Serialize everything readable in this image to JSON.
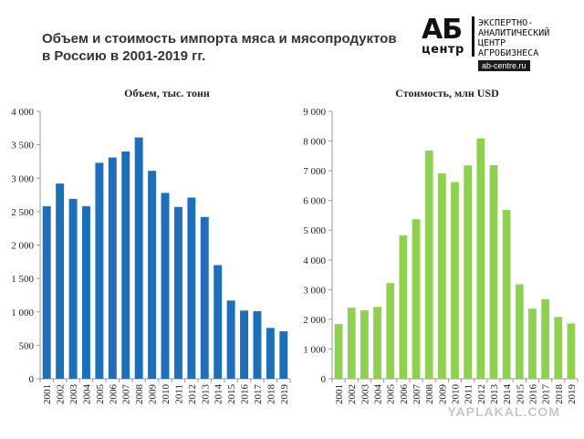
{
  "title_lines": [
    "Объем и стоимость импорта мяса и мясопродуктов",
    "в Россию в 2001-2019 гг."
  ],
  "logo": {
    "ab": "АБ",
    "center": "центр",
    "text_lines": [
      "ЭКСПЕРТНО-",
      "АНАЛИТИЧЕСКИЙ",
      "ЦЕНТР",
      "АГРОБИЗНЕСА"
    ],
    "url": "ab-centre.ru"
  },
  "watermark": "YAPLAKAL.COM",
  "colors": {
    "left_bars": "#1f6fb8",
    "right_bars": "#8fd14f",
    "axis": "#999999"
  },
  "chart_data": [
    {
      "type": "bar",
      "title": "Объем, тыс. тонн",
      "categories": [
        "2001",
        "2002",
        "2003",
        "2004",
        "2005",
        "2006",
        "2007",
        "2008",
        "2009",
        "2010",
        "2011",
        "2012",
        "2013",
        "2014",
        "2015",
        "2016",
        "2017",
        "2018",
        "2019"
      ],
      "values": [
        2580,
        2920,
        2690,
        2580,
        3230,
        3310,
        3400,
        3610,
        3110,
        2780,
        2570,
        2710,
        2420,
        1700,
        1170,
        1020,
        1010,
        760,
        710
      ],
      "ylim": [
        0,
        4000
      ],
      "ytick_labels": [
        "0",
        "500",
        "1 000",
        "1 500",
        "2 000",
        "2 500",
        "3 000",
        "3 500",
        "4 000"
      ],
      "color": "#1f6fb8"
    },
    {
      "type": "bar",
      "title": "Стоимость, млн USD",
      "categories": [
        "2001",
        "2002",
        "2003",
        "2004",
        "2005",
        "2006",
        "2007",
        "2008",
        "2009",
        "2010",
        "2011",
        "2012",
        "2013",
        "2014",
        "2015",
        "2016",
        "2017",
        "2018",
        "2019"
      ],
      "values": [
        1840,
        2390,
        2300,
        2420,
        3220,
        4830,
        5370,
        7680,
        6910,
        6620,
        7180,
        8090,
        7190,
        5680,
        3180,
        2360,
        2680,
        2080,
        1860
      ],
      "ylim": [
        0,
        9000
      ],
      "ytick_labels": [
        "0",
        "1 000",
        "2 000",
        "3 000",
        "4 000",
        "5 000",
        "6 000",
        "7 000",
        "8 000",
        "9 000"
      ],
      "color": "#8fd14f"
    }
  ]
}
